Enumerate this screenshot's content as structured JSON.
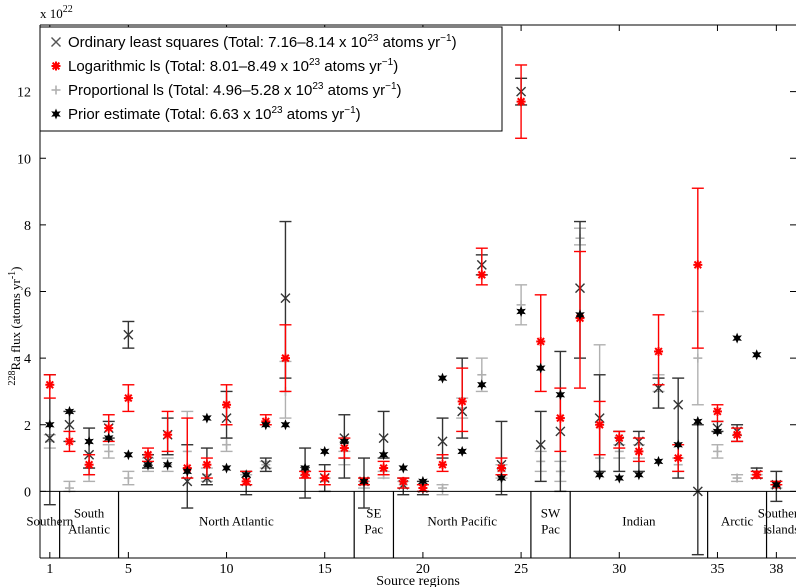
{
  "chart_data": {
    "type": "errorbar",
    "scale_label": "x 10",
    "scale_exponent": "22",
    "ylabel_pre": "228",
    "ylabel_main": "Ra flux (atoms yr",
    "ylabel_sup": "-1",
    "ylabel_close": ")",
    "xlabel": "Source regions",
    "ylim": [
      -2,
      14
    ],
    "xlim": [
      0.5,
      39
    ],
    "yticks": [
      "0",
      "2",
      "4",
      "6",
      "8",
      "10",
      "12"
    ],
    "xticks": [
      "1",
      "5",
      "10",
      "15",
      "20",
      "25",
      "30",
      "35",
      "38"
    ],
    "grid": false,
    "legend_position": "top-left",
    "legend": [
      {
        "symbol": "×",
        "color": "#555555",
        "pre": "Ordinary least squares (Total: 7.16–8.14 x 10",
        "sup1": "23",
        "mid": " atoms yr",
        "sup2": "−1",
        "post": ")"
      },
      {
        "symbol": "✱",
        "color": "#ff0000",
        "pre": "Logarithmic ls (Total: 8.01–8.49 x 10",
        "sup1": "23",
        "mid": " atoms yr",
        "sup2": "−1",
        "post": ")"
      },
      {
        "symbol": "+",
        "color": "#b0b0b0",
        "pre": "Proportional ls (Total: 4.96–5.28 x 10",
        "sup1": "23",
        "mid": " atoms yr",
        "sup2": "−1",
        "post": ")"
      },
      {
        "symbol": "✱",
        "color": "#000000",
        "pre": "Prior estimate (Total: 6.63 x 10",
        "sup1": "23",
        "mid": " atoms yr",
        "sup2": "−1",
        "post": ")"
      }
    ],
    "regions": [
      {
        "name": "Southern",
        "start": 0.5,
        "end": 1.5
      },
      {
        "name": "South|Atlantic",
        "start": 1.5,
        "end": 4.5
      },
      {
        "name": "North Atlantic",
        "start": 4.5,
        "end": 16.5
      },
      {
        "name": "SE|Pac",
        "start": 16.5,
        "end": 18.5
      },
      {
        "name": "North Pacific",
        "start": 18.5,
        "end": 25.5
      },
      {
        "name": "SW|Pac",
        "start": 25.5,
        "end": 27.5
      },
      {
        "name": "Indian",
        "start": 27.5,
        "end": 34.5
      },
      {
        "name": "Arctic",
        "start": 34.5,
        "end": 37.5
      },
      {
        "name": "Southern|islands",
        "start": 37.5,
        "end": 39
      }
    ],
    "series": [
      {
        "name": "Ordinary least squares",
        "color": "#333333",
        "marker": "x",
        "offset": 0.0,
        "points": [
          [
            1,
            1.6,
            -0.4,
            3.5
          ],
          [
            2,
            2.0,
            1.5,
            2.4
          ],
          [
            3,
            1.1,
            0.7,
            1.9
          ],
          [
            4,
            1.9,
            1.6,
            2.1
          ],
          [
            5,
            4.7,
            4.3,
            5.1
          ],
          [
            6,
            0.9,
            0.7,
            1.1
          ],
          [
            7,
            1.7,
            1.1,
            2.2
          ],
          [
            8,
            0.3,
            -0.5,
            1.4
          ],
          [
            9,
            0.4,
            0.2,
            1.3
          ],
          [
            10,
            2.2,
            1.6,
            3.0
          ],
          [
            11,
            0.3,
            -0.1,
            0.6
          ],
          [
            12,
            0.8,
            0.6,
            1.0
          ],
          [
            13,
            5.8,
            3.4,
            8.1
          ],
          [
            14,
            0.6,
            -0.2,
            1.3
          ],
          [
            15,
            0.4,
            0.0,
            0.8
          ],
          [
            16,
            1.6,
            0.4,
            2.3
          ],
          [
            17,
            0.3,
            -0.5,
            1.0
          ],
          [
            18,
            1.6,
            1.0,
            2.4
          ],
          [
            19,
            0.2,
            -0.1,
            0.4
          ],
          [
            20,
            0.1,
            -0.1,
            0.3
          ],
          [
            21,
            1.5,
            1.0,
            2.2
          ],
          [
            22,
            2.4,
            1.6,
            4.0
          ],
          [
            23,
            6.8,
            6.5,
            7.1
          ],
          [
            24,
            0.8,
            -0.1,
            2.1
          ],
          [
            25,
            12.0,
            11.6,
            12.4
          ],
          [
            26,
            1.4,
            0.3,
            2.4
          ],
          [
            27,
            1.8,
            0.0,
            4.2
          ],
          [
            28,
            6.1,
            4.0,
            8.1
          ],
          [
            29,
            2.2,
            0.6,
            3.5
          ],
          [
            30,
            1.5,
            0.6,
            1.8
          ],
          [
            31,
            1.5,
            0.6,
            1.8
          ],
          [
            32,
            3.1,
            2.5,
            3.4
          ],
          [
            33,
            2.6,
            0.4,
            3.4
          ],
          [
            34,
            0.0,
            -1.9,
            2.0
          ],
          [
            35,
            1.9,
            1.8,
            2.1
          ],
          [
            36,
            1.8,
            1.5,
            2.0
          ],
          [
            37,
            0.5,
            0.4,
            0.7
          ],
          [
            38,
            0.2,
            -0.3,
            0.6
          ]
        ]
      },
      {
        "name": "Logarithmic ls",
        "color": "#ff0000",
        "marker": "asterisk",
        "offset": 0.0,
        "points": [
          [
            1,
            3.2,
            2.8,
            3.5
          ],
          [
            2,
            1.5,
            1.2,
            1.8
          ],
          [
            3,
            0.8,
            0.5,
            1.1
          ],
          [
            4,
            1.9,
            1.5,
            2.3
          ],
          [
            5,
            2.8,
            2.4,
            3.2
          ],
          [
            6,
            1.1,
            0.9,
            1.3
          ],
          [
            7,
            1.7,
            1.2,
            2.4
          ],
          [
            8,
            0.7,
            0.4,
            2.2
          ],
          [
            9,
            0.8,
            0.4,
            1.0
          ],
          [
            10,
            2.6,
            2.0,
            3.2
          ],
          [
            11,
            0.3,
            0.2,
            0.6
          ],
          [
            12,
            2.1,
            2.0,
            2.3
          ],
          [
            13,
            4.0,
            3.0,
            5.0
          ],
          [
            14,
            0.5,
            0.4,
            0.6
          ],
          [
            15,
            0.4,
            0.2,
            0.6
          ],
          [
            16,
            1.3,
            1.0,
            1.6
          ],
          [
            17,
            0.3,
            0.2,
            0.4
          ],
          [
            18,
            0.7,
            0.5,
            0.9
          ],
          [
            19,
            0.3,
            0.1,
            0.4
          ],
          [
            20,
            0.1,
            0.0,
            0.2
          ],
          [
            21,
            0.8,
            0.6,
            1.1
          ],
          [
            22,
            2.7,
            1.8,
            3.7
          ],
          [
            23,
            6.5,
            6.2,
            7.3
          ],
          [
            24,
            0.7,
            0.5,
            1.0
          ],
          [
            25,
            11.7,
            10.6,
            12.8
          ],
          [
            26,
            4.5,
            3.0,
            5.9
          ],
          [
            27,
            2.2,
            1.2,
            3.1
          ],
          [
            28,
            5.2,
            3.1,
            7.2
          ],
          [
            29,
            2.0,
            1.1,
            2.7
          ],
          [
            30,
            1.6,
            1.3,
            1.8
          ],
          [
            31,
            1.2,
            0.9,
            1.6
          ],
          [
            32,
            4.2,
            3.2,
            5.3
          ],
          [
            33,
            1.0,
            0.6,
            1.4
          ],
          [
            34,
            6.8,
            4.3,
            9.1
          ],
          [
            35,
            2.4,
            2.1,
            2.6
          ],
          [
            36,
            1.7,
            1.5,
            1.9
          ],
          [
            37,
            0.5,
            0.4,
            0.6
          ],
          [
            38,
            0.2,
            0.2,
            0.3
          ]
        ]
      },
      {
        "name": "Proportional ls",
        "color": "#b0b0b0",
        "marker": "plus",
        "offset": 0.0,
        "points": [
          [
            1,
            1.5,
            1.3,
            1.7
          ],
          [
            2,
            0.1,
            0.0,
            0.3
          ],
          [
            3,
            0.5,
            0.3,
            0.7
          ],
          [
            4,
            1.2,
            1.0,
            1.4
          ],
          [
            5,
            0.4,
            0.2,
            0.6
          ],
          [
            6,
            0.8,
            0.6,
            1.0
          ],
          [
            7,
            0.8,
            0.6,
            1.0
          ],
          [
            8,
            1.2,
            0.4,
            2.4
          ],
          [
            9,
            0.5,
            0.3,
            0.7
          ],
          [
            10,
            1.4,
            1.2,
            1.6
          ],
          [
            11,
            0.3,
            0.2,
            0.5
          ],
          [
            12,
            0.8,
            0.7,
            0.9
          ],
          [
            13,
            3.0,
            2.2,
            3.9
          ],
          [
            14,
            0.5,
            0.4,
            0.6
          ],
          [
            15,
            0.3,
            0.2,
            0.4
          ],
          [
            16,
            1.0,
            0.8,
            1.2
          ],
          [
            17,
            0.2,
            0.1,
            0.3
          ],
          [
            18,
            0.5,
            0.4,
            0.6
          ],
          [
            19,
            0.2,
            0.1,
            0.3
          ],
          [
            20,
            0.1,
            0.0,
            0.2
          ],
          [
            21,
            0.1,
            -0.1,
            0.2
          ],
          [
            22,
            2.5,
            2.2,
            2.8
          ],
          [
            23,
            3.5,
            3.0,
            4.0
          ],
          [
            24,
            0.6,
            0.4,
            0.8
          ],
          [
            25,
            5.6,
            5.0,
            6.2
          ],
          [
            26,
            0.9,
            0.6,
            1.2
          ],
          [
            27,
            0.6,
            0.3,
            0.9
          ],
          [
            28,
            7.6,
            7.4,
            7.9
          ],
          [
            29,
            1.0,
            0.6,
            4.4
          ],
          [
            30,
            1.2,
            1.0,
            1.4
          ],
          [
            31,
            1.2,
            1.0,
            1.4
          ],
          [
            32,
            3.2,
            3.0,
            3.5
          ],
          [
            33,
            0.8,
            0.6,
            1.0
          ],
          [
            34,
            4.0,
            2.6,
            5.4
          ],
          [
            35,
            1.2,
            1.0,
            1.4
          ],
          [
            36,
            0.4,
            0.3,
            0.5
          ],
          [
            37,
            0.6,
            0.5,
            0.7
          ],
          [
            38,
            0.2,
            0.1,
            0.3
          ]
        ]
      },
      {
        "name": "Prior estimate",
        "color": "#000000",
        "marker": "star",
        "offset": 0.0,
        "points": [
          [
            1,
            2.0
          ],
          [
            2,
            2.4
          ],
          [
            3,
            1.5
          ],
          [
            4,
            1.6
          ],
          [
            5,
            1.1
          ],
          [
            6,
            0.8
          ],
          [
            7,
            0.8
          ],
          [
            8,
            0.6
          ],
          [
            9,
            2.2
          ],
          [
            10,
            0.7
          ],
          [
            11,
            0.5
          ],
          [
            12,
            2.0
          ],
          [
            13,
            2.0
          ],
          [
            14,
            0.7
          ],
          [
            15,
            1.2
          ],
          [
            16,
            1.5
          ],
          [
            17,
            0.3
          ],
          [
            18,
            1.1
          ],
          [
            19,
            0.7
          ],
          [
            20,
            0.3
          ],
          [
            21,
            3.4
          ],
          [
            22,
            1.2
          ],
          [
            23,
            3.2
          ],
          [
            24,
            0.4
          ],
          [
            25,
            5.4
          ],
          [
            26,
            3.7
          ],
          [
            27,
            2.9
          ],
          [
            28,
            5.3
          ],
          [
            29,
            0.5
          ],
          [
            30,
            0.4
          ],
          [
            31,
            0.5
          ],
          [
            32,
            0.9
          ],
          [
            33,
            1.4
          ],
          [
            34,
            2.1
          ],
          [
            35,
            1.8
          ],
          [
            36,
            4.6
          ],
          [
            37,
            4.1
          ],
          [
            38,
            0.2
          ]
        ]
      }
    ]
  }
}
